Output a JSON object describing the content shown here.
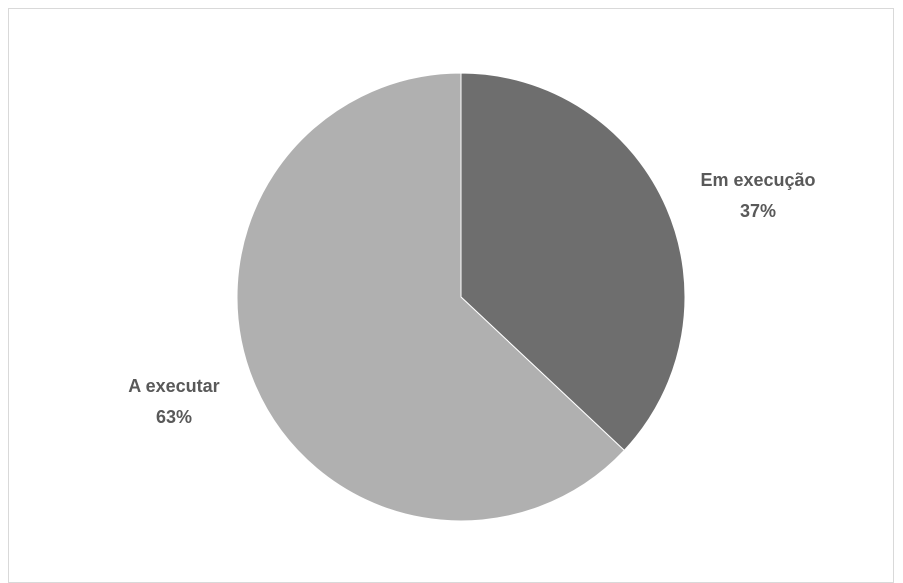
{
  "chart_data": {
    "type": "pie",
    "categories": [
      "Em execução",
      "A executar"
    ],
    "values": [
      37,
      63
    ],
    "percent_labels": [
      "37%",
      "63%"
    ],
    "colors": [
      "#6e6e6e",
      "#b0b0b0"
    ],
    "start_angle_deg": 0,
    "direction": "clockwise",
    "title": "",
    "legend": "none"
  }
}
